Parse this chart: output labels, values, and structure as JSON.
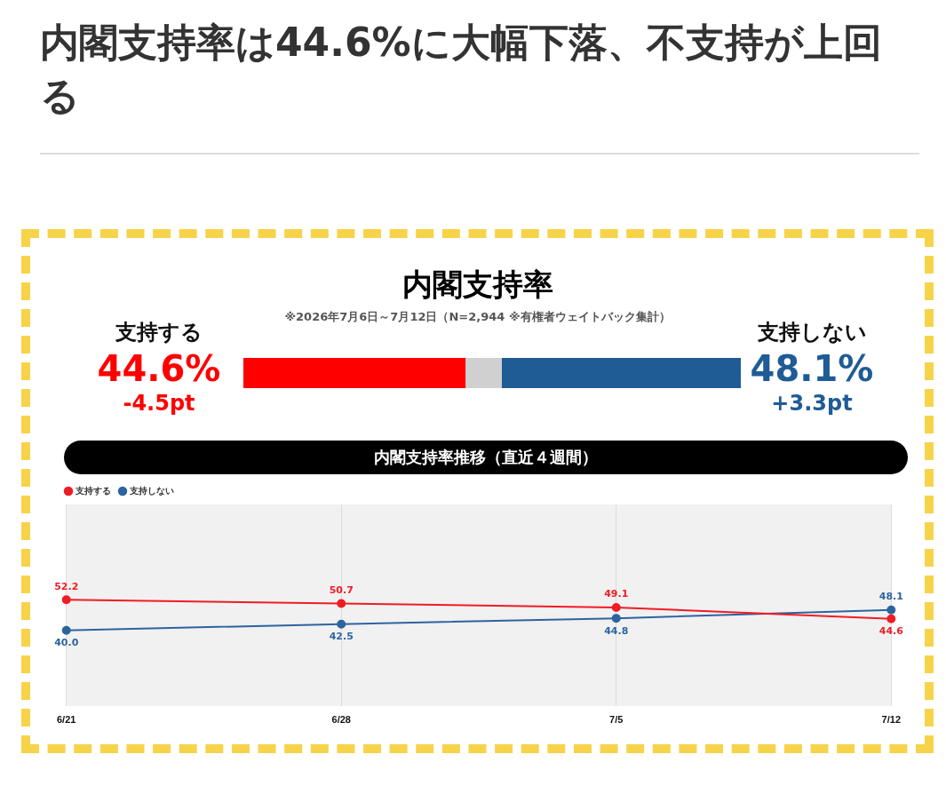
{
  "chart_data": [
    {
      "type": "bar",
      "orientation": "horizontal",
      "stacked": true,
      "title": "内閣支持率",
      "subtitle": "※2026年7月6日～7月12日（N=2,944 ※有権者ウェイトバック集計）",
      "categories": [
        null
      ],
      "tick_labels": false,
      "grid": false,
      "legend": false,
      "series": [
        {
          "name": "支持する",
          "color": "#ff0000",
          "values": [
            44.6
          ],
          "value_labels": [
            "44.6%"
          ]
        },
        {
          "color": "#d0d0d0",
          "values": [
            7.3
          ]
        },
        {
          "name": "支持しない",
          "color": "#1f5c96",
          "values": [
            48.1
          ],
          "value_labels": [
            "48.1%"
          ]
        }
      ],
      "annotations": [
        "内閣支持率は44.6%に大幅下落、不支持が上回る",
        "-4.5pt",
        "+3.3pt"
      ]
    },
    {
      "type": "line",
      "title": "内閣支持率推移（直近４週間）",
      "categories": [
        "6/21",
        "6/28",
        "7/5",
        "7/12"
      ],
      "ylim": [
        10,
        90
      ],
      "tick_labels": "x",
      "grid": "x",
      "legend": "top left",
      "marker": "circle",
      "series": [
        {
          "name": "支持する",
          "color": "#f01c24",
          "values": [
            52.2,
            50.7,
            49.1,
            44.6
          ],
          "value_labels": [
            "52.2",
            "50.7",
            "49.1",
            "44.6"
          ]
        },
        {
          "name": "支持しない",
          "color": "#2d64a0",
          "values": [
            40.0,
            42.5,
            44.8,
            48.1
          ],
          "value_labels": [
            "40.0",
            "42.5",
            "44.8",
            "48.1"
          ]
        }
      ]
    }
  ]
}
